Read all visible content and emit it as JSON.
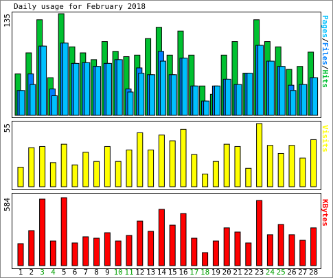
{
  "title": "Daily usage for February 2018",
  "categories": [
    "1",
    "2",
    "3",
    "4",
    "5",
    "6",
    "7",
    "8",
    "9",
    "10",
    "11",
    "12",
    "13",
    "14",
    "15",
    "16",
    "17",
    "18",
    "19",
    "20",
    "21",
    "22",
    "23",
    "24",
    "25",
    "26",
    "27",
    "28"
  ],
  "category_colors": [
    "#000000",
    "#000000",
    "#00a000",
    "#00a000",
    "#000000",
    "#000000",
    "#000000",
    "#000000",
    "#000000",
    "#00a000",
    "#00a000",
    "#000000",
    "#000000",
    "#000000",
    "#000000",
    "#000000",
    "#00a000",
    "#00a000",
    "#000000",
    "#000000",
    "#000000",
    "#000000",
    "#000000",
    "#00a000",
    "#00a000",
    "#000000",
    "#000000",
    "#000000"
  ],
  "chart_data": [
    {
      "type": "bar",
      "ylim": [
        0,
        135
      ],
      "yticks": [
        135
      ],
      "legend_separator": "/",
      "series": [
        {
          "name": "Pages",
          "color": "#00c0ff",
          "values": [
            33,
            41,
            92,
            26,
            96,
            69,
            70,
            65,
            69,
            74,
            31,
            56,
            54,
            72,
            54,
            76,
            39,
            19,
            39,
            48,
            41,
            56,
            93,
            72,
            65,
            33,
            41,
            50
          ]
        },
        {
          "name": "Files",
          "color": "#0080ff",
          "values": [
            33,
            55,
            92,
            35,
            96,
            69,
            70,
            65,
            69,
            74,
            35,
            63,
            54,
            85,
            54,
            76,
            39,
            19,
            39,
            48,
            41,
            56,
            93,
            72,
            65,
            40,
            41,
            50
          ]
        },
        {
          "name": "Hits",
          "color": "#00c030",
          "values": [
            55,
            83,
            127,
            50,
            135,
            91,
            83,
            74,
            98,
            85,
            78,
            80,
            102,
            117,
            80,
            112,
            80,
            39,
            28,
            80,
            98,
            56,
            127,
            98,
            91,
            61,
            65,
            84
          ]
        }
      ]
    },
    {
      "type": "bar",
      "ylim": [
        0,
        55
      ],
      "yticks": [
        55
      ],
      "series": [
        {
          "name": "Visits",
          "color": "#ffff00",
          "values": [
            17,
            34,
            35,
            21,
            37,
            19,
            30,
            22,
            35,
            22,
            32,
            47,
            32,
            45,
            40,
            50,
            28,
            11,
            22,
            37,
            35,
            16,
            55,
            36,
            29,
            36,
            25,
            41
          ]
        }
      ]
    },
    {
      "type": "bar",
      "ylim": [
        0,
        584
      ],
      "yticks": [
        584
      ],
      "series": [
        {
          "name": "KBytes",
          "color": "#ff0000",
          "values": [
            189,
            301,
            572,
            212,
            584,
            195,
            248,
            236,
            283,
            212,
            260,
            383,
            295,
            484,
            348,
            448,
            236,
            112,
            212,
            325,
            289,
            195,
            560,
            266,
            354,
            266,
            218,
            325
          ]
        }
      ]
    }
  ]
}
